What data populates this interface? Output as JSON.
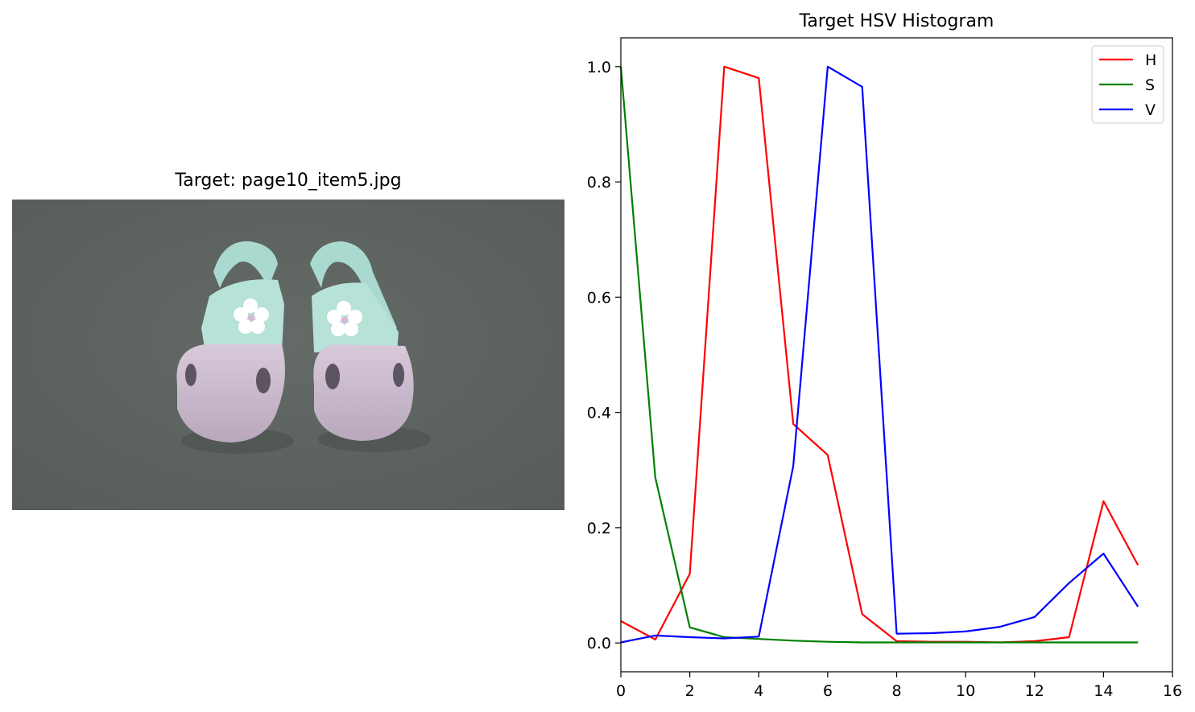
{
  "image_panel": {
    "title": "Target: page10_item5.jpg",
    "image_subject": "pair of lavender and mint toddler clogs with white flower detail on grey carpet",
    "colors": {
      "background": "#5f6561",
      "clog_body": "#cbbcd0",
      "strap": "#a9d9cf",
      "flower": "#ffffff"
    }
  },
  "chart_data": {
    "type": "line",
    "title": "Target HSV Histogram",
    "xlabel": "",
    "ylabel": "",
    "xlim": [
      0,
      16
    ],
    "ylim": [
      -0.05,
      1.05
    ],
    "xticks": [
      0,
      2,
      4,
      6,
      8,
      10,
      12,
      14,
      16
    ],
    "yticks": [
      0.0,
      0.2,
      0.4,
      0.6,
      0.8,
      1.0
    ],
    "ytick_labels": [
      "0.0",
      "0.2",
      "0.4",
      "0.6",
      "0.8",
      "1.0"
    ],
    "grid": false,
    "legend_position": "top-right",
    "x": [
      0,
      1,
      2,
      3,
      4,
      5,
      6,
      7,
      8,
      9,
      10,
      11,
      12,
      13,
      14,
      15
    ],
    "series": [
      {
        "name": "H",
        "color": "#ff0000",
        "values": [
          0.038,
          0.006,
          0.12,
          1.0,
          0.98,
          0.38,
          0.326,
          0.05,
          0.003,
          0.002,
          0.002,
          0.001,
          0.003,
          0.01,
          0.246,
          0.135
        ]
      },
      {
        "name": "S",
        "color": "#008000",
        "values": [
          1.0,
          0.287,
          0.027,
          0.01,
          0.007,
          0.004,
          0.002,
          0.001,
          0.001,
          0.001,
          0.001,
          0.001,
          0.001,
          0.001,
          0.001,
          0.001
        ]
      },
      {
        "name": "V",
        "color": "#0000ff",
        "values": [
          0.001,
          0.013,
          0.01,
          0.008,
          0.011,
          0.307,
          1.0,
          0.965,
          0.016,
          0.017,
          0.02,
          0.028,
          0.045,
          0.104,
          0.155,
          0.063
        ]
      }
    ]
  }
}
